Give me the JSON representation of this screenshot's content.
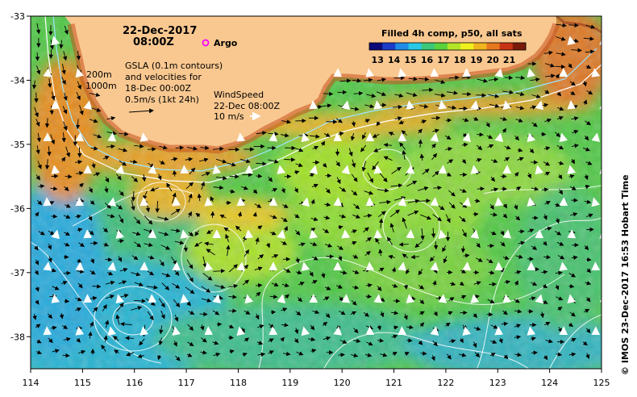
{
  "header": {
    "date": "22-Dec-2017",
    "time": "08:00Z",
    "argo_label": "Argo",
    "colorbar_title": "Filled 4h comp, p50, all sats"
  },
  "colorbar": {
    "ticks": [
      "13",
      "14",
      "15",
      "16",
      "17",
      "18",
      "19",
      "20",
      "21"
    ],
    "range": [
      12.5,
      22
    ],
    "colors": [
      "#0a0a78",
      "#1a3cc8",
      "#1e8ce6",
      "#28c8e6",
      "#3cc878",
      "#5ad23c",
      "#b4e628",
      "#f0f01e",
      "#f0b41e",
      "#e6781e",
      "#c83214",
      "#7a1a0a"
    ]
  },
  "legend": {
    "depth_200": "200m",
    "depth_1000": "1000m",
    "gsla_lines": [
      "GSLA (0.1m contours)",
      "and velocities for",
      "18-Dec 00:00Z",
      "0.5m/s (1kt 24h)"
    ],
    "wind_lines": [
      "WindSpeed",
      "22-Dec 08:00Z",
      "10 m/s"
    ]
  },
  "axes": {
    "x_ticks": [
      "114",
      "115",
      "116",
      "117",
      "118",
      "119",
      "120",
      "121",
      "122",
      "123",
      "124",
      "125"
    ],
    "y_ticks": [
      "-33",
      "-34",
      "-35",
      "-36",
      "-37",
      "-38"
    ],
    "lon_range": [
      114,
      125
    ],
    "lat_range": [
      -33,
      -38.5
    ]
  },
  "credit": "© IMOS 23-Dec-2017 16:53 Hobart Time",
  "colors": {
    "land": "#f9c890",
    "ocean_warm": "#5ad23c",
    "ocean_cool": "#28c8e6",
    "shelf": "#e6781e",
    "argo_marker": "#ff00ff"
  }
}
